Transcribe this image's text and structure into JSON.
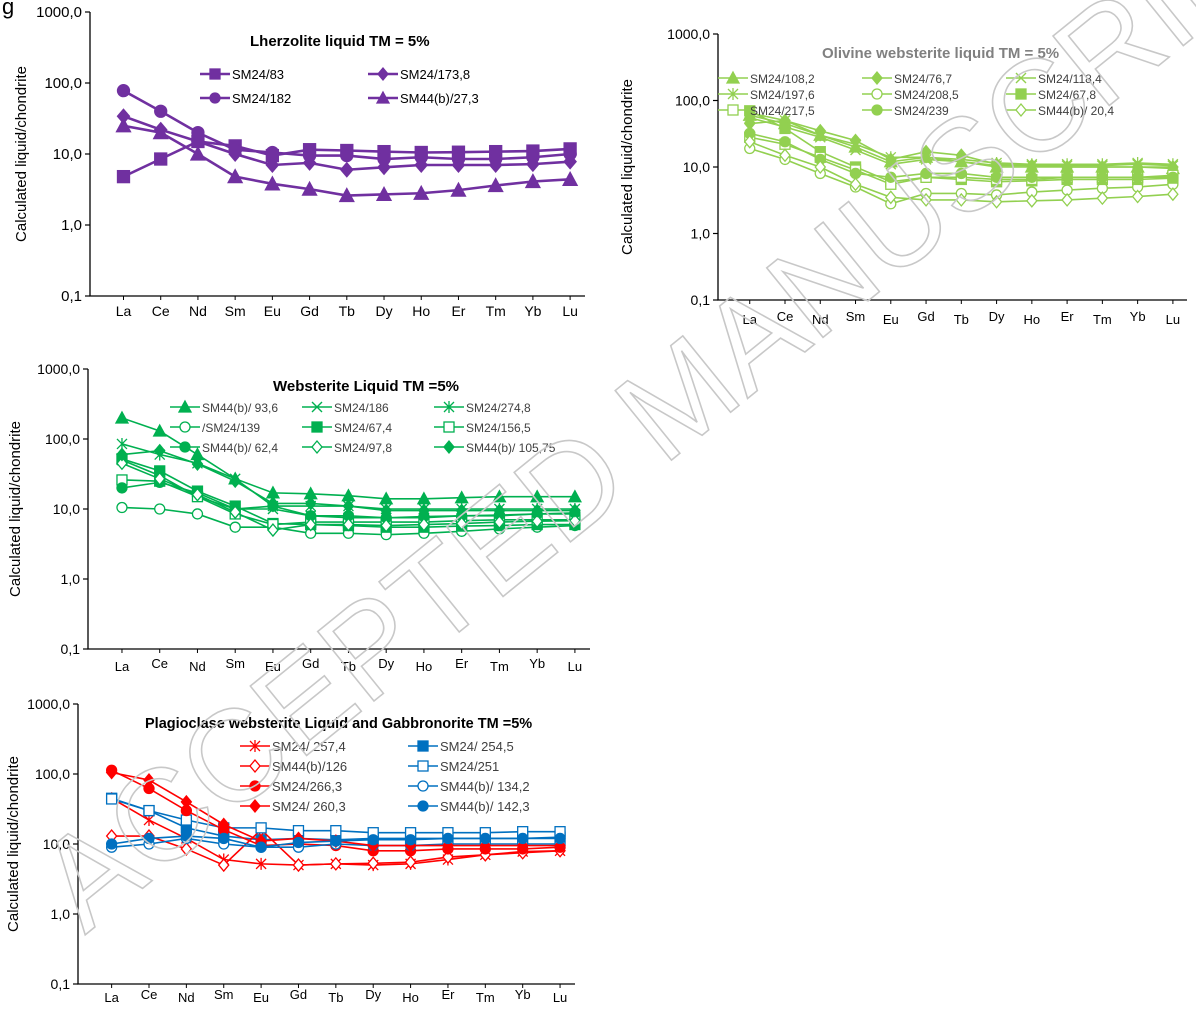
{
  "page": {
    "corner_text": "g",
    "watermark": "ACCEPTED MANUSCRIPT"
  },
  "categories": [
    "La",
    "Ce",
    "Nd",
    "Sm",
    "Eu",
    "Gd",
    "Tb",
    "Dy",
    "Ho",
    "Er",
    "Tm",
    "Yb",
    "Lu"
  ],
  "ylabel": "Calculated liquid/chondrite",
  "ytick_labels": [
    "0,1",
    "1,0",
    "10,0",
    "100,0",
    "1000,0"
  ],
  "chart_data": [
    {
      "type": "line",
      "title": "Lherzolite liquid TM = 5%",
      "ylabel": "Calculated liquid/chondrite",
      "yscale": "log",
      "ylim": [
        0.1,
        1000
      ],
      "categories": [
        "La",
        "Ce",
        "Nd",
        "Sm",
        "Eu",
        "Gd",
        "Tb",
        "Dy",
        "Ho",
        "Er",
        "Tm",
        "Yb",
        "Lu"
      ],
      "legend": "top-right",
      "series": [
        {
          "name": "SM24/83",
          "color": "#7030a0",
          "marker": "square",
          "values": [
            4.8,
            8.5,
            15,
            13,
            9.5,
            11.5,
            11.2,
            10.8,
            10.5,
            10.6,
            10.8,
            11,
            11.8
          ]
        },
        {
          "name": "SM24/173,8",
          "color": "#7030a0",
          "marker": "diamond",
          "values": [
            34,
            22,
            15,
            10,
            7,
            7.5,
            6,
            6.5,
            7,
            7,
            7,
            7.2,
            7.8
          ]
        },
        {
          "name": "SM24/182",
          "color": "#7030a0",
          "marker": "circle",
          "values": [
            78,
            40,
            20,
            11.5,
            10.5,
            9.5,
            9.5,
            8.5,
            9,
            8.5,
            8.5,
            9,
            10
          ]
        },
        {
          "name": "SM44(b)/27,3",
          "color": "#7030a0",
          "marker": "triangle",
          "values": [
            25,
            20,
            10,
            4.8,
            3.8,
            3.2,
            2.6,
            2.7,
            2.8,
            3.1,
            3.6,
            4.1,
            4.4
          ]
        }
      ]
    },
    {
      "type": "line",
      "title": "Olivine websterite liquid TM = 5%",
      "ylabel": "Calculated liquid/chondrite",
      "yscale": "log",
      "ylim": [
        0.1,
        1000
      ],
      "categories": [
        "La",
        "Ce",
        "Nd",
        "Sm",
        "Eu",
        "Gd",
        "Tb",
        "Dy",
        "Ho",
        "Er",
        "Tm",
        "Yb",
        "Lu"
      ],
      "legend": "top",
      "series": [
        {
          "name": "SM24/108,2",
          "color": "#92d050",
          "marker": "triangle",
          "values": [
            60,
            45,
            30,
            20,
            12,
            14,
            12,
            10,
            10,
            10,
            10,
            10,
            9.5
          ]
        },
        {
          "name": "SM24/76,7",
          "color": "#92d050",
          "marker": "diamond",
          "values": [
            45,
            50,
            35,
            25,
            13,
            17,
            15,
            11,
            10.5,
            10,
            10,
            10,
            10
          ]
        },
        {
          "name": "SM24/118,4",
          "color": "#92d050",
          "marker": "x",
          "values": [
            55,
            40,
            28,
            18,
            11,
            13,
            12,
            10.5,
            10.5,
            10.5,
            10.5,
            11,
            10.5
          ]
        },
        {
          "name": "SM24/197,6",
          "color": "#92d050",
          "marker": "star",
          "values": [
            65,
            50,
            30,
            22,
            14,
            14,
            13,
            11.5,
            11,
            11,
            11,
            11.5,
            11
          ]
        },
        {
          "name": "SM24/208,5",
          "color": "#92d050",
          "marker": "circle-open",
          "values": [
            19,
            13,
            8,
            5,
            2.8,
            4,
            4,
            3.8,
            4.2,
            4.5,
            4.8,
            5,
            5.5
          ]
        },
        {
          "name": "SM24/67,8",
          "color": "#92d050",
          "marker": "square",
          "values": [
            70,
            38,
            17,
            10,
            6,
            7,
            6.5,
            6,
            6.2,
            6.5,
            6.5,
            6.5,
            6.8
          ]
        },
        {
          "name": "SM24/217,5",
          "color": "#92d050",
          "marker": "square-open",
          "values": [
            28,
            22,
            14,
            9,
            5.5,
            7,
            7,
            6.5,
            6.5,
            7,
            7,
            7,
            7.5
          ]
        },
        {
          "name": "SM24/239",
          "color": "#92d050",
          "marker": "circle",
          "values": [
            32,
            24,
            13,
            8,
            7,
            8,
            8,
            7,
            7,
            7,
            7,
            7,
            7
          ]
        },
        {
          "name": "SM44(b)/ 20,4",
          "color": "#92d050",
          "marker": "diamond-open",
          "values": [
            24,
            15,
            10,
            5.5,
            3.5,
            3.2,
            3.2,
            3,
            3.1,
            3.2,
            3.4,
            3.6,
            3.9
          ]
        }
      ]
    },
    {
      "type": "line",
      "title": "Websterite Liquid TM =5%",
      "ylabel": "Calculated liquid/chondrite",
      "yscale": "log",
      "ylim": [
        0.1,
        1000
      ],
      "categories": [
        "La",
        "Ce",
        "Nd",
        "Sm",
        "Eu",
        "Gd",
        "Tb",
        "Dy",
        "Ho",
        "Er",
        "Tm",
        "Yb",
        "Lu"
      ],
      "legend": "top",
      "series": [
        {
          "name": "SM44(b)/ 93,6",
          "color": "#00b050",
          "marker": "triangle",
          "values": [
            200,
            130,
            60,
            27,
            17,
            16.5,
            15.5,
            14,
            14,
            14.5,
            15,
            15,
            15
          ]
        },
        {
          "name": "SM24/186",
          "color": "#00b050",
          "marker": "x",
          "values": [
            50,
            30,
            15,
            10,
            10,
            8,
            7.5,
            7.5,
            7.5,
            8,
            8,
            8.5,
            8.5
          ]
        },
        {
          "name": "SM24/274,8",
          "color": "#00b050",
          "marker": "star",
          "values": [
            85,
            60,
            45,
            27,
            11,
            11,
            11,
            10,
            10,
            10,
            10,
            10,
            10
          ]
        },
        {
          "name": "/SM24/139",
          "color": "#00b050",
          "marker": "circle-open",
          "values": [
            10.5,
            10,
            8.5,
            5.5,
            5.5,
            4.5,
            4.5,
            4.3,
            4.5,
            4.8,
            5.2,
            5.5,
            5.8
          ]
        },
        {
          "name": "SM24/67,4",
          "color": "#00b050",
          "marker": "square",
          "values": [
            52,
            35,
            18,
            11,
            6.2,
            6,
            5.8,
            5.5,
            5.5,
            5.7,
            5.8,
            6,
            6
          ]
        },
        {
          "name": "SM24/156,5",
          "color": "#00b050",
          "marker": "square-open",
          "values": [
            26,
            25,
            15,
            8.5,
            6,
            6.5,
            6.5,
            6.5,
            6.5,
            6.8,
            7,
            7,
            7
          ]
        },
        {
          "name": "SM44(b)/ 62,4",
          "color": "#00b050",
          "marker": "circle",
          "values": [
            20,
            24,
            17,
            10,
            11,
            8,
            8,
            7.5,
            7.8,
            8,
            8.2,
            8.5,
            8.8
          ]
        },
        {
          "name": "SM24/97,8",
          "color": "#00b050",
          "marker": "diamond-open",
          "values": [
            45,
            27,
            16,
            9,
            5,
            6,
            6,
            5.8,
            6,
            6.2,
            6.5,
            6.7,
            6.8
          ]
        },
        {
          "name": "SM44(b)/ 105,75",
          "color": "#00b050",
          "marker": "diamond",
          "values": [
            60,
            68,
            44,
            25,
            12,
            12,
            11,
            9.5,
            9.5,
            9.5,
            9.5,
            9.5,
            9.5
          ]
        }
      ]
    },
    {
      "type": "line",
      "title": "Plagioclase websterite Liquid and Gabbronorite TM =5%",
      "ylabel": "Calculated liquid/chondrite",
      "yscale": "log",
      "ylim": [
        0.1,
        1000
      ],
      "categories": [
        "La",
        "Ce",
        "Nd",
        "Sm",
        "Eu",
        "Gd",
        "Tb",
        "Dy",
        "Ho",
        "Er",
        "Tm",
        "Yb",
        "Lu"
      ],
      "legend": "top",
      "series": [
        {
          "name": "SM24/ 257,4",
          "color": "#ff0000",
          "marker": "star",
          "values": [
            45,
            22,
            12,
            6,
            5.2,
            5,
            5.2,
            5,
            5.2,
            6,
            7,
            7.8,
            8
          ]
        },
        {
          "name": "SM24/ 254,5",
          "color": "#0070c0",
          "marker": "square",
          "values": [
            45,
            30,
            17,
            13,
            11.5,
            12,
            11.5,
            12,
            12,
            12,
            12,
            12,
            12.5
          ]
        },
        {
          "name": "SM44(b)/126",
          "color": "#ff0000",
          "marker": "diamond-open",
          "values": [
            13,
            13,
            8.5,
            5,
            16,
            5,
            5.2,
            5.3,
            5.5,
            6.5,
            7,
            7.5,
            8
          ]
        },
        {
          "name": "SM24/251",
          "color": "#0070c0",
          "marker": "square-open",
          "values": [
            44,
            30,
            22,
            17,
            17,
            15.5,
            15.5,
            14.5,
            14.5,
            14.5,
            14.5,
            15,
            15
          ]
        },
        {
          "name": "SM24/266,3",
          "color": "#ff0000",
          "marker": "circle",
          "values": [
            113,
            62,
            30,
            16,
            9.5,
            10,
            9.5,
            8,
            8,
            8.5,
            8.5,
            8.5,
            9
          ]
        },
        {
          "name": "SM44(b)/ 134,2",
          "color": "#0070c0",
          "marker": "circle-open",
          "values": [
            9,
            10,
            12,
            10,
            9,
            9,
            10,
            9.5,
            9.5,
            10,
            10,
            10,
            10
          ]
        },
        {
          "name": "SM24/ 260,3",
          "color": "#ff0000",
          "marker": "diamond",
          "values": [
            105,
            82,
            40,
            19,
            11,
            12,
            11,
            9.5,
            9.5,
            9.5,
            9.5,
            9.5,
            9.5
          ]
        },
        {
          "name": "SM44(b)/ 142,3",
          "color": "#0070c0",
          "marker": "circle",
          "values": [
            10,
            12,
            13,
            12,
            9,
            10.5,
            11,
            11.5,
            11.5,
            12,
            12,
            12,
            12
          ]
        }
      ]
    }
  ]
}
